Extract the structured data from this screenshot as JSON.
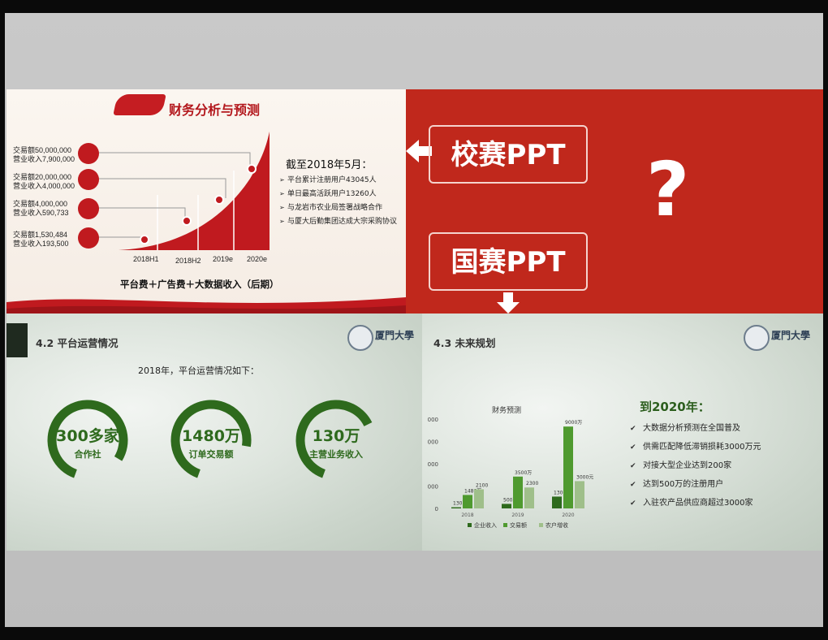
{
  "slide1": {
    "title": "财务分析与预测",
    "milestones": [
      {
        "line1": "交易额50,000,000",
        "line2": "营业收入7,900,000"
      },
      {
        "line1": "交易额20,000,000",
        "line2": "营业收入4,000,000"
      },
      {
        "line1": "交易额4,000,000",
        "line2": "营业收入590,733"
      },
      {
        "line1": "交易额1,530,484",
        "line2": "营业收入193,500"
      }
    ],
    "x_labels": [
      "2018H1",
      "2018H2",
      "2019e",
      "2020e"
    ],
    "heading": "截至2018年5月：",
    "bullets": [
      "平台累计注册用户43045人",
      "单日最高活跃用户13260人",
      "与龙岩市农业局签署战略合作",
      "与厦大后勤集团达成大宗采购协议"
    ],
    "formula": "平台费＋广告费＋大数据收入（后期）"
  },
  "slide2": {
    "box1": "校赛PPT",
    "box2": "国赛PPT",
    "question": "?"
  },
  "slide3": {
    "title": "4.2 平台运营情况",
    "logo_text": "厦門大學",
    "intro": "2018年，平台运营情况如下：",
    "stats": [
      {
        "value": "300多家",
        "label": "合作社",
        "fraction": 0.78
      },
      {
        "value": "1480万",
        "label": "订单交易额",
        "fraction": 0.72
      },
      {
        "value": "130万",
        "label": "主营业务收入",
        "fraction": 0.62
      }
    ]
  },
  "slide4": {
    "title": "4.3 未来规划",
    "logo_text": "厦門大學",
    "chart_title": "财务预测",
    "heading": "到2020年：",
    "bullets": [
      "大数据分析预测在全国普及",
      "供需匹配降低滞销损耗3000万元",
      "对接大型企业达到200家",
      "达到500万的注册用户",
      "入驻农产品供应商超过3000家"
    ]
  },
  "chart_data": {
    "type": "bar",
    "title": "财务预测",
    "categories": [
      "2018",
      "2019",
      "2020"
    ],
    "series": [
      {
        "name": "企业收入",
        "values": [
          130,
          500,
          1300
        ],
        "labels": [
          "130万",
          "500万",
          "1300万"
        ],
        "color": "#2e6a1d"
      },
      {
        "name": "交易额",
        "values": [
          1480,
          3500,
          9000
        ],
        "labels": [
          "1480万",
          "3500万",
          "9000万"
        ],
        "color": "#4f9a2f"
      },
      {
        "name": "农户增收",
        "values": [
          2100,
          2300,
          3000
        ],
        "labels": [
          "2100",
          "2300",
          "3000元"
        ],
        "color": "#9fbf8a"
      }
    ],
    "ylim": [
      0,
      10000
    ],
    "yticks": [
      "0",
      "000",
      "000",
      "000",
      "000"
    ],
    "legend_position": "bottom",
    "grid": false
  }
}
